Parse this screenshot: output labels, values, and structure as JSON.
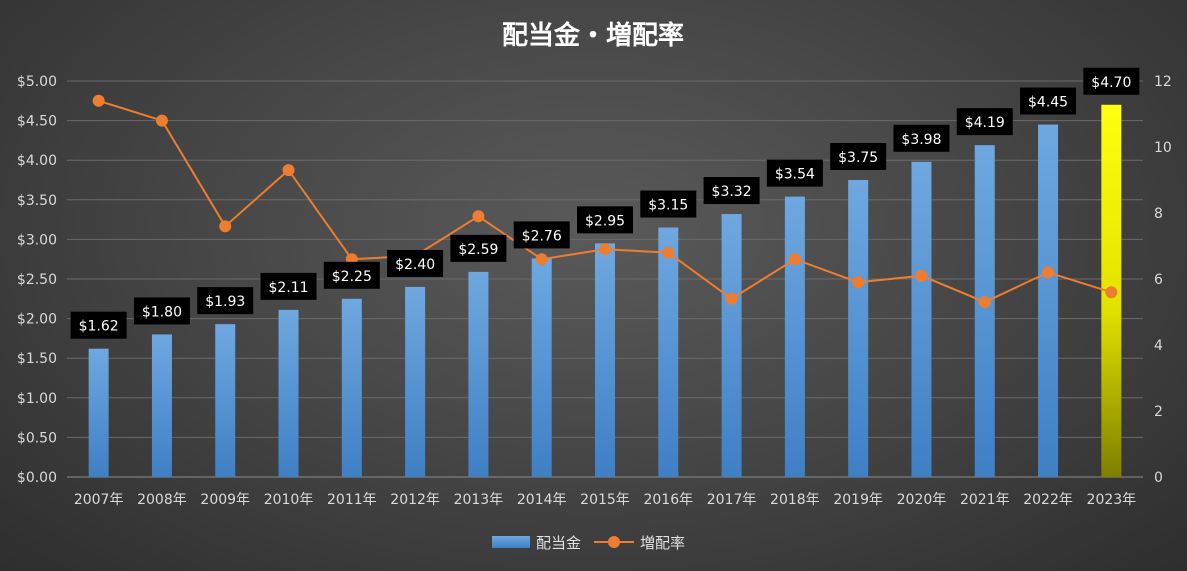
{
  "chart_data": {
    "type": "bar",
    "title": "配当金・増配率",
    "categories": [
      "2007年",
      "2008年",
      "2009年",
      "2010年",
      "2011年",
      "2012年",
      "2013年",
      "2014年",
      "2015年",
      "2016年",
      "2017年",
      "2018年",
      "2019年",
      "2020年",
      "2021年",
      "2022年",
      "2023年"
    ],
    "series": [
      {
        "name": "配当金",
        "type": "bar",
        "axis": "left",
        "values": [
          1.62,
          1.8,
          1.93,
          2.11,
          2.25,
          2.4,
          2.59,
          2.76,
          2.95,
          3.15,
          3.32,
          3.54,
          3.75,
          3.98,
          4.19,
          4.45,
          4.7
        ],
        "data_labels": [
          "$1.62",
          "$1.80",
          "$1.93",
          "$2.11",
          "$2.25",
          "$2.40",
          "$2.59",
          "$2.76",
          "$2.95",
          "$3.15",
          "$3.32",
          "$3.54",
          "$3.75",
          "$3.98",
          "$4.19",
          "$4.45",
          "$4.70"
        ],
        "color": "#5b9bd5",
        "highlight_color": "#ffff00",
        "highlight_index": 16
      },
      {
        "name": "増配率",
        "type": "line",
        "axis": "right",
        "values": [
          11.4,
          10.8,
          7.6,
          9.3,
          6.6,
          6.7,
          7.9,
          6.6,
          6.9,
          6.8,
          5.4,
          6.6,
          5.9,
          6.1,
          5.3,
          6.2,
          5.6
        ],
        "color": "#ed7d31"
      }
    ],
    "y_left": {
      "range": [
        0,
        5
      ],
      "ticks": [
        "$0.00",
        "$0.50",
        "$1.00",
        "$1.50",
        "$2.00",
        "$2.50",
        "$3.00",
        "$3.50",
        "$4.00",
        "$4.50",
        "$5.00"
      ]
    },
    "y_right": {
      "range": [
        0,
        12
      ],
      "ticks": [
        "0",
        "2",
        "4",
        "6",
        "8",
        "10",
        "12"
      ]
    },
    "grid": true,
    "legend": "bottom"
  }
}
